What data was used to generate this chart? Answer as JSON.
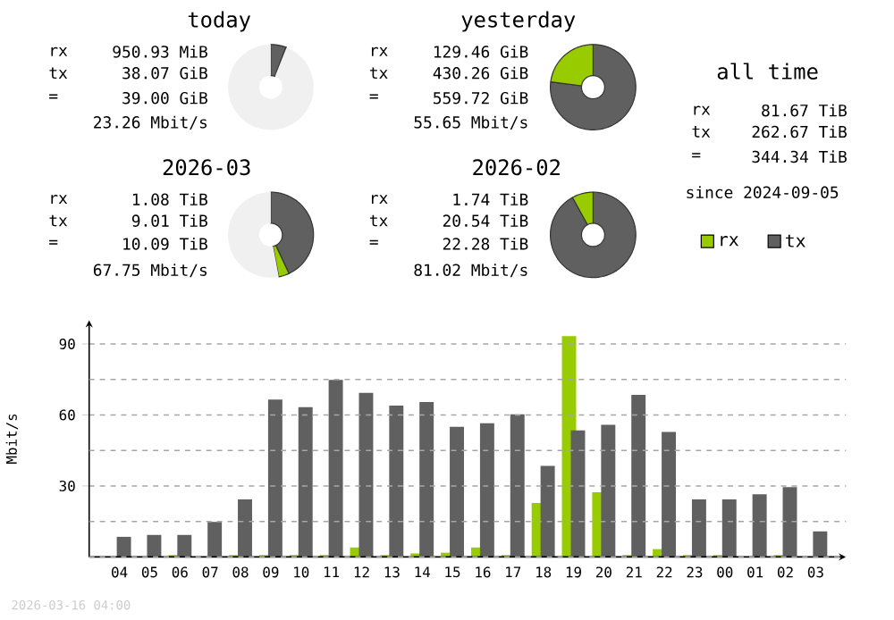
{
  "chart_data": [
    {
      "type": "donut",
      "title": "today",
      "categories": [
        null,
        null,
        null
      ],
      "values": [
        5.8,
        0.2,
        94
      ],
      "colors": [
        "#606060",
        "#99cc00",
        "#f0f0f0"
      ],
      "annotations": [
        "rx",
        "950.93 MiB",
        "tx",
        "38.07 GiB",
        "=",
        "39.00 GiB",
        "23.26 Mbit/s"
      ]
    },
    {
      "type": "donut",
      "title": "yesterday",
      "categories": [
        null,
        null,
        null
      ],
      "values": [
        77,
        23,
        0
      ],
      "colors": [
        "#606060",
        "#99cc00",
        "#f0f0f0"
      ],
      "annotations": [
        "rx",
        "129.46 GiB",
        "tx",
        "430.26 GiB",
        "=",
        "559.72 GiB",
        "55.65 Mbit/s"
      ]
    },
    {
      "type": "other",
      "title": "all time",
      "annotations": [
        "rx",
        "81.67 TiB",
        "tx",
        "262.67 TiB",
        "=",
        "344.34 TiB",
        "since 2024-09-05"
      ]
    },
    {
      "type": "donut",
      "title": "2026-03",
      "categories": [
        null,
        null,
        null
      ],
      "values": [
        43,
        4,
        53
      ],
      "colors": [
        "#606060",
        "#99cc00",
        "#f0f0f0"
      ],
      "annotations": [
        "rx",
        "1.08 TiB",
        "tx",
        "9.01 TiB",
        "=",
        "10.09 TiB",
        "67.75 Mbit/s"
      ]
    },
    {
      "type": "donut",
      "title": "2026-02",
      "categories": [
        null,
        null,
        null
      ],
      "values": [
        92,
        8,
        0
      ],
      "colors": [
        "#606060",
        "#99cc00",
        "#f0f0f0"
      ],
      "annotations": [
        "rx",
        "1.74 TiB",
        "tx",
        "20.54 TiB",
        "=",
        "22.28 TiB",
        "81.02 Mbit/s"
      ]
    },
    {
      "type": "bar",
      "ylabel": "Mbit/s",
      "categories": [
        "04",
        "05",
        "06",
        "07",
        "08",
        "09",
        "10",
        "11",
        "12",
        "13",
        "14",
        "15",
        "16",
        "17",
        "18",
        "19",
        "20",
        "21",
        "22",
        "23",
        "00",
        "01",
        "02",
        "03"
      ],
      "series": [
        {
          "name": "rx",
          "color": "#99cc00",
          "values": [
            0,
            0,
            0.8,
            0,
            0.8,
            0.8,
            0.8,
            0.8,
            4,
            0.8,
            1.5,
            1.8,
            4,
            0.8,
            22.8,
            93.3,
            27.3,
            0.8,
            3.3,
            0.8,
            0.8,
            0,
            0.8,
            0
          ]
        },
        {
          "name": "tx",
          "color": "#606060",
          "values": [
            8.5,
            9.3,
            9.3,
            14.8,
            24.3,
            66.5,
            63.3,
            74.8,
            69.3,
            64,
            65.5,
            55,
            56.5,
            60.3,
            38.5,
            53.5,
            55.8,
            68.5,
            52.8,
            24.3,
            24.3,
            26.5,
            29.5,
            10.8
          ]
        }
      ],
      "ylim": [
        0,
        100
      ],
      "yticks": [
        {
          "value": 0,
          "label": null
        },
        {
          "value": 15,
          "label": null
        },
        30,
        {
          "value": 45,
          "label": null
        },
        60,
        {
          "value": 75,
          "label": null
        },
        90
      ],
      "grid": "y",
      "legend": "top right",
      "annotations": [
        "2026-03-16 04:00"
      ]
    }
  ]
}
